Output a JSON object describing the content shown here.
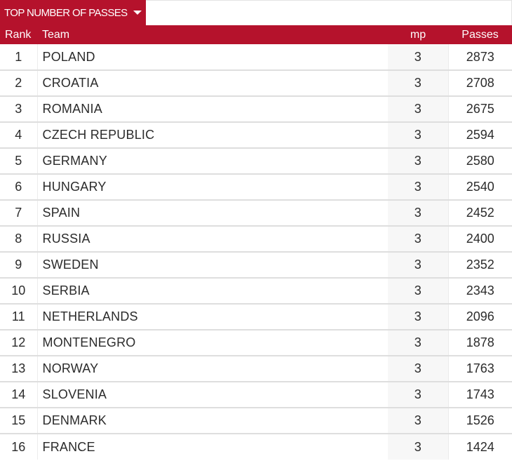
{
  "header": {
    "dropdown_label": "TOP NUMBER OF PASSES"
  },
  "table": {
    "columns": {
      "rank": "Rank",
      "team": "Team",
      "mp": "mp",
      "passes": "Passes"
    },
    "rows": [
      {
        "rank": "1",
        "team": "POLAND",
        "mp": "3",
        "passes": "2873"
      },
      {
        "rank": "2",
        "team": "CROATIA",
        "mp": "3",
        "passes": "2708"
      },
      {
        "rank": "3",
        "team": "ROMANIA",
        "mp": "3",
        "passes": "2675"
      },
      {
        "rank": "4",
        "team": "CZECH REPUBLIC",
        "mp": "3",
        "passes": "2594"
      },
      {
        "rank": "5",
        "team": "GERMANY",
        "mp": "3",
        "passes": "2580"
      },
      {
        "rank": "6",
        "team": "HUNGARY",
        "mp": "3",
        "passes": "2540"
      },
      {
        "rank": "7",
        "team": "SPAIN",
        "mp": "3",
        "passes": "2452"
      },
      {
        "rank": "8",
        "team": "RUSSIA",
        "mp": "3",
        "passes": "2400"
      },
      {
        "rank": "9",
        "team": "SWEDEN",
        "mp": "3",
        "passes": "2352"
      },
      {
        "rank": "10",
        "team": "SERBIA",
        "mp": "3",
        "passes": "2343"
      },
      {
        "rank": "11",
        "team": "NETHERLANDS",
        "mp": "3",
        "passes": "2096"
      },
      {
        "rank": "12",
        "team": "MONTENEGRO",
        "mp": "3",
        "passes": "1878"
      },
      {
        "rank": "13",
        "team": "NORWAY",
        "mp": "3",
        "passes": "1763"
      },
      {
        "rank": "14",
        "team": "SLOVENIA",
        "mp": "3",
        "passes": "1743"
      },
      {
        "rank": "15",
        "team": "DENMARK",
        "mp": "3",
        "passes": "1526"
      },
      {
        "rank": "16",
        "team": "FRANCE",
        "mp": "3",
        "passes": "1424"
      }
    ]
  },
  "colors": {
    "accent": "#b5122c",
    "row_border": "#dedede",
    "mp_column_bg": "#f7f7f7"
  },
  "icons": {
    "dropdown": "caret-down-icon"
  }
}
